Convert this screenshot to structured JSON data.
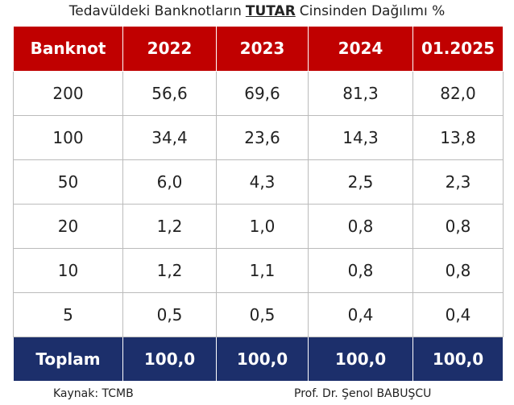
{
  "title": {
    "before": "Tedavüldeki Banknotların",
    "emphasis": "TUTAR",
    "after": "Cinsinden Dağılımı %"
  },
  "table": {
    "header": [
      "Banknot",
      "2022",
      "2023",
      "2024",
      "01.2025"
    ],
    "rows": [
      [
        "200",
        "56,6",
        "69,6",
        "81,3",
        "82,0"
      ],
      [
        "100",
        "34,4",
        "23,6",
        "14,3",
        "13,8"
      ],
      [
        "50",
        "6,0",
        "4,3",
        "2,5",
        "2,3"
      ],
      [
        "20",
        "1,2",
        "1,0",
        "0,8",
        "0,8"
      ],
      [
        "10",
        "1,2",
        "1,1",
        "0,8",
        "0,8"
      ],
      [
        "5",
        "0,5",
        "0,5",
        "0,4",
        "0,4"
      ]
    ],
    "total": [
      "Toplam",
      "100,0",
      "100,0",
      "100,0",
      "100,0"
    ]
  },
  "footer": {
    "source": "Kaynak: TCMB",
    "author": "Prof. Dr. Şenol BABUŞCU"
  }
}
